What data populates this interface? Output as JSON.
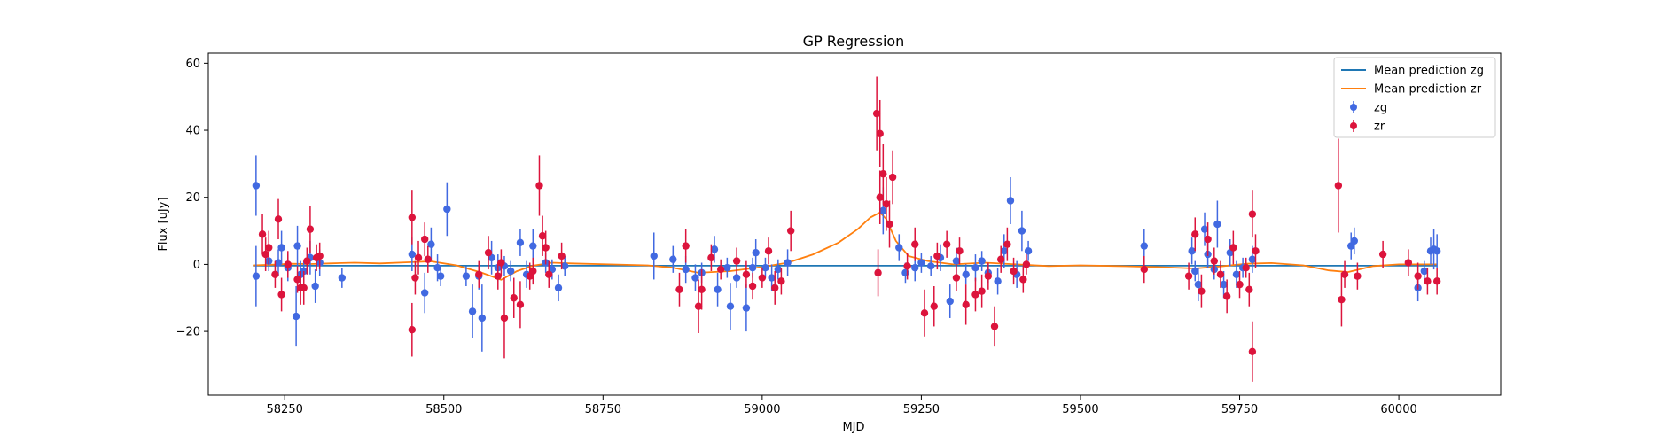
{
  "chart_data": {
    "type": "scatter",
    "title": "GP Regression",
    "xlabel": "MJD",
    "ylabel": "Flux [uJy]",
    "xlim": [
      58130,
      60160
    ],
    "ylim": [
      -39,
      63
    ],
    "xticks": [
      58250,
      58500,
      58750,
      59000,
      59250,
      59500,
      59750,
      60000
    ],
    "yticks": [
      -20,
      0,
      20,
      40,
      60
    ],
    "legend": {
      "position": "top-right",
      "entries": [
        {
          "label": "Mean prediction zg",
          "kind": "line",
          "color": "#1f77b4"
        },
        {
          "label": "Mean prediction zr",
          "kind": "line",
          "color": "#ff7f0e"
        },
        {
          "label": "zg",
          "kind": "errorbar",
          "color": "#4169e1"
        },
        {
          "label": "zr",
          "kind": "errorbar",
          "color": "#dc143c"
        }
      ]
    },
    "lines": [
      {
        "name": "Mean prediction zg",
        "color": "#1f77b4",
        "x": [
          58200,
          58300,
          58500,
          58800,
          59000,
          59250,
          59500,
          59800,
          60060
        ],
        "y": [
          -0.4,
          -0.4,
          -0.4,
          -0.4,
          -0.4,
          -0.4,
          -0.4,
          -0.4,
          -0.4
        ]
      },
      {
        "name": "Mean prediction zr",
        "color": "#ff7f0e",
        "x": [
          58200,
          58230,
          58260,
          58290,
          58320,
          58360,
          58400,
          58440,
          58480,
          58520,
          58560,
          58590,
          58615,
          58640,
          58670,
          58700,
          58760,
          58820,
          58860,
          58900,
          58950,
          59000,
          59040,
          59080,
          59120,
          59150,
          59170,
          59185,
          59195,
          59210,
          59230,
          59260,
          59300,
          59350,
          59400,
          59450,
          59500,
          59560,
          59620,
          59680,
          59720,
          59760,
          59800,
          59850,
          59890,
          59920,
          59960,
          60000,
          60060
        ],
        "y": [
          -0.3,
          -0.1,
          0.2,
          0.1,
          0.3,
          0.5,
          0.3,
          0.6,
          0.9,
          -0.3,
          -2.5,
          -4.6,
          -2.0,
          -0.4,
          0.5,
          0.3,
          0.0,
          -0.3,
          -1.0,
          -2.5,
          -2.0,
          -0.8,
          0.5,
          3.0,
          6.5,
          10.5,
          14.0,
          15.5,
          13.5,
          7.0,
          2.5,
          1.0,
          0.0,
          0.5,
          0.0,
          -0.5,
          -0.3,
          -0.5,
          -0.8,
          -1.2,
          -0.6,
          0.2,
          0.4,
          -0.3,
          -1.8,
          -2.3,
          -0.5,
          0.0,
          0.0
        ]
      }
    ],
    "series": [
      {
        "name": "zg",
        "color": "#4169e1",
        "points": [
          [
            58205,
            23.5,
            9
          ],
          [
            58205,
            -3.5,
            9
          ],
          [
            58225,
            1,
            3
          ],
          [
            58240,
            0.5,
            4
          ],
          [
            58245,
            5,
            5
          ],
          [
            58255,
            -1,
            4
          ],
          [
            58268,
            -15.5,
            9
          ],
          [
            58270,
            5.5,
            6
          ],
          [
            58275,
            -3,
            4
          ],
          [
            58280,
            -2,
            3
          ],
          [
            58290,
            2,
            5
          ],
          [
            58298,
            -6.5,
            5
          ],
          [
            58305,
            0.5,
            4
          ],
          [
            58340,
            -4,
            3
          ],
          [
            58450,
            3,
            5
          ],
          [
            58470,
            -8.5,
            6
          ],
          [
            58480,
            6,
            5
          ],
          [
            58490,
            -1,
            4
          ],
          [
            58495,
            -3.5,
            3
          ],
          [
            58505,
            16.5,
            8
          ],
          [
            58535,
            -3.5,
            3
          ],
          [
            58545,
            -14,
            8
          ],
          [
            58555,
            -3.5,
            4
          ],
          [
            58560,
            -16,
            10
          ],
          [
            58575,
            2,
            5
          ],
          [
            58585,
            -1,
            4
          ],
          [
            58595,
            -0.5,
            3
          ],
          [
            58605,
            -2,
            3
          ],
          [
            58620,
            6.5,
            4
          ],
          [
            58630,
            -3,
            4
          ],
          [
            58640,
            5.5,
            5
          ],
          [
            58660,
            0.5,
            3
          ],
          [
            58670,
            -1.5,
            3
          ],
          [
            58680,
            -7,
            4
          ],
          [
            58690,
            -0.5,
            3
          ],
          [
            58830,
            2.5,
            7
          ],
          [
            58860,
            1.5,
            4
          ],
          [
            58880,
            -1.5,
            4
          ],
          [
            58895,
            -4,
            4
          ],
          [
            58905,
            -2.5,
            3
          ],
          [
            58925,
            4.5,
            4
          ],
          [
            58930,
            -7.5,
            5
          ],
          [
            58945,
            -1,
            3
          ],
          [
            58950,
            -12.5,
            7
          ],
          [
            58960,
            -4,
            3
          ],
          [
            58975,
            -13,
            7
          ],
          [
            58985,
            -1,
            3
          ],
          [
            58990,
            3.5,
            4
          ],
          [
            59005,
            -1,
            3
          ],
          [
            59015,
            -4,
            4
          ],
          [
            59025,
            -1.5,
            3
          ],
          [
            59040,
            0.5,
            4
          ],
          [
            59190,
            16,
            7
          ],
          [
            59215,
            5,
            4
          ],
          [
            59225,
            -2.5,
            3
          ],
          [
            59240,
            -1,
            4
          ],
          [
            59250,
            0.5,
            3
          ],
          [
            59265,
            -0.5,
            3
          ],
          [
            59280,
            2,
            4
          ],
          [
            59295,
            -11,
            5
          ],
          [
            59305,
            1,
            4
          ],
          [
            59320,
            -3,
            3
          ],
          [
            59335,
            -1,
            4
          ],
          [
            59345,
            1,
            3
          ],
          [
            59355,
            -2.5,
            3
          ],
          [
            59370,
            -5,
            4
          ],
          [
            59380,
            4,
            5
          ],
          [
            59390,
            19,
            7
          ],
          [
            59400,
            -3,
            4
          ],
          [
            59408,
            10,
            6
          ],
          [
            59418,
            4,
            3
          ],
          [
            59600,
            5.5,
            5
          ],
          [
            59675,
            4,
            4
          ],
          [
            59680,
            -2,
            3
          ],
          [
            59685,
            -6,
            5
          ],
          [
            59695,
            10.5,
            5
          ],
          [
            59700,
            3,
            4
          ],
          [
            59710,
            -1.5,
            3
          ],
          [
            59715,
            12,
            7
          ],
          [
            59725,
            -6,
            4
          ],
          [
            59735,
            3.5,
            4
          ],
          [
            59745,
            -3,
            4
          ],
          [
            59755,
            -1,
            3
          ],
          [
            59770,
            1.5,
            4
          ],
          [
            59925,
            5.5,
            4
          ],
          [
            59930,
            7,
            4
          ],
          [
            60030,
            -7,
            4
          ],
          [
            60040,
            -2,
            3
          ],
          [
            60050,
            4,
            4
          ],
          [
            60055,
            4.5,
            6
          ],
          [
            60060,
            4,
            5
          ]
        ]
      },
      {
        "name": "zr",
        "color": "#dc143c",
        "points": [
          [
            58215,
            9,
            6
          ],
          [
            58220,
            3,
            5
          ],
          [
            58225,
            5,
            5
          ],
          [
            58235,
            -3,
            4
          ],
          [
            58240,
            13.5,
            6
          ],
          [
            58245,
            -9,
            5
          ],
          [
            58255,
            0,
            4
          ],
          [
            58270,
            -4.5,
            4
          ],
          [
            58275,
            -7,
            5
          ],
          [
            58280,
            -7,
            5
          ],
          [
            58285,
            1,
            4
          ],
          [
            58290,
            10.5,
            7
          ],
          [
            58300,
            2,
            4
          ],
          [
            58305,
            2.5,
            4
          ],
          [
            58450,
            14,
            8
          ],
          [
            58450,
            -19.5,
            8
          ],
          [
            58455,
            -4,
            5
          ],
          [
            58460,
            2,
            5
          ],
          [
            58470,
            7.5,
            5
          ],
          [
            58475,
            1.5,
            4
          ],
          [
            58555,
            -3,
            4
          ],
          [
            58570,
            3.5,
            5
          ],
          [
            58585,
            -3.5,
            4
          ],
          [
            58590,
            0.5,
            4
          ],
          [
            58595,
            -16,
            12
          ],
          [
            58610,
            -10,
            6
          ],
          [
            58620,
            -12,
            7
          ],
          [
            58635,
            -3.5,
            4
          ],
          [
            58640,
            -2,
            4
          ],
          [
            58650,
            23.5,
            9
          ],
          [
            58655,
            8.5,
            6
          ],
          [
            58660,
            5,
            5
          ],
          [
            58665,
            -3,
            4
          ],
          [
            58685,
            2.5,
            4
          ],
          [
            58870,
            -7.5,
            5
          ],
          [
            58880,
            5.5,
            5
          ],
          [
            58900,
            -12.5,
            8
          ],
          [
            58905,
            -7.5,
            6
          ],
          [
            58920,
            2,
            4
          ],
          [
            58935,
            -1.5,
            3
          ],
          [
            58960,
            1,
            4
          ],
          [
            58975,
            -3,
            4
          ],
          [
            58985,
            -6.5,
            4
          ],
          [
            59000,
            -4,
            3
          ],
          [
            59010,
            4,
            4
          ],
          [
            59020,
            -7,
            5
          ],
          [
            59030,
            -5,
            4
          ],
          [
            59045,
            10,
            6
          ],
          [
            59180,
            45,
            11
          ],
          [
            59185,
            39,
            10
          ],
          [
            59190,
            27,
            9
          ],
          [
            59185,
            20,
            8
          ],
          [
            59195,
            18,
            8
          ],
          [
            59200,
            12,
            7
          ],
          [
            59182,
            -2.5,
            7
          ],
          [
            59205,
            26,
            8
          ],
          [
            59228,
            -0.5,
            4
          ],
          [
            59240,
            6,
            5
          ],
          [
            59255,
            -14.5,
            7
          ],
          [
            59270,
            -12.5,
            6
          ],
          [
            59275,
            2.5,
            4
          ],
          [
            59290,
            6,
            4
          ],
          [
            59305,
            -4,
            4
          ],
          [
            59310,
            4,
            4
          ],
          [
            59320,
            -12,
            6
          ],
          [
            59335,
            -9,
            5
          ],
          [
            59345,
            -8,
            5
          ],
          [
            59355,
            -3.5,
            4
          ],
          [
            59365,
            -18.5,
            6
          ],
          [
            59375,
            1.5,
            4
          ],
          [
            59385,
            6,
            5
          ],
          [
            59395,
            -2,
            4
          ],
          [
            59410,
            -4.5,
            4
          ],
          [
            59415,
            0,
            3
          ],
          [
            59600,
            -1.5,
            4
          ],
          [
            59670,
            -3.5,
            4
          ],
          [
            59680,
            9,
            5
          ],
          [
            59690,
            -8,
            5
          ],
          [
            59700,
            7.5,
            5
          ],
          [
            59710,
            1,
            4
          ],
          [
            59720,
            -3,
            4
          ],
          [
            59730,
            -9.5,
            5
          ],
          [
            59740,
            5,
            5
          ],
          [
            59750,
            -6,
            4
          ],
          [
            59760,
            -1,
            3
          ],
          [
            59765,
            -7.5,
            5
          ],
          [
            59770,
            15,
            7
          ],
          [
            59770,
            -26,
            9
          ],
          [
            59775,
            4,
            5
          ],
          [
            59905,
            23.5,
            14
          ],
          [
            59910,
            -10.5,
            8
          ],
          [
            59915,
            -3,
            4
          ],
          [
            59935,
            -3.5,
            4
          ],
          [
            59975,
            3,
            4
          ],
          [
            60015,
            0.5,
            4
          ],
          [
            60030,
            -3.5,
            4
          ],
          [
            60045,
            -5,
            4
          ],
          [
            60060,
            -5,
            4
          ]
        ]
      }
    ]
  }
}
